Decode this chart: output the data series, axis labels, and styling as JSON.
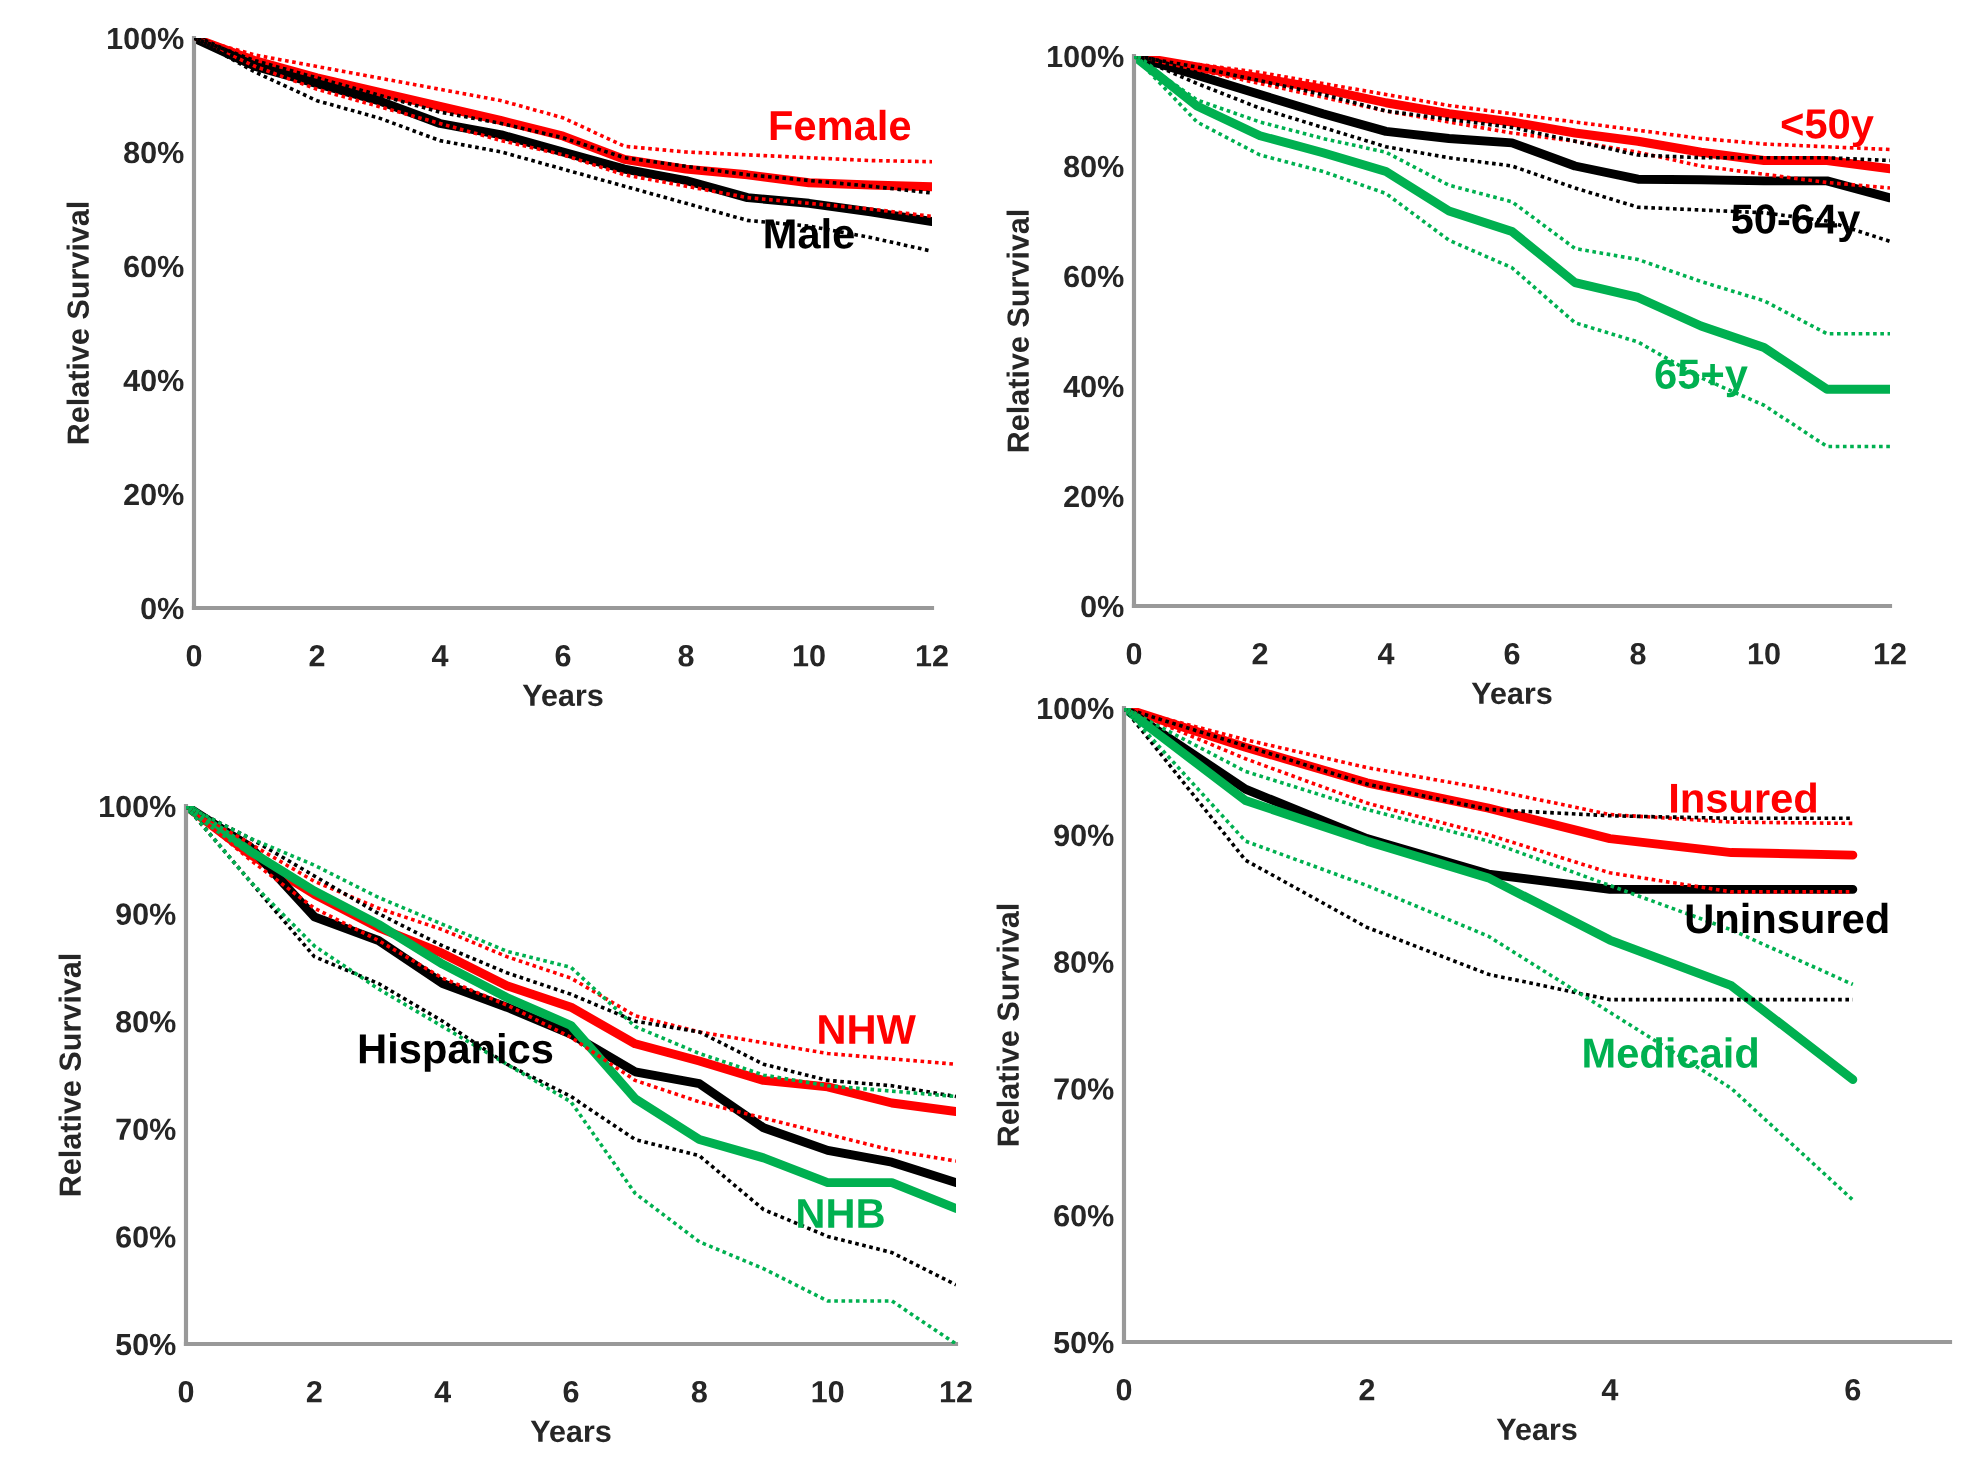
{
  "chart_data": [
    {
      "type": "line",
      "xlabel": "Years",
      "ylabel": "Relative Survival",
      "x": [
        0,
        1,
        2,
        3,
        4,
        5,
        6,
        7,
        8,
        9,
        10,
        11,
        12
      ],
      "xlim": [
        0,
        12
      ],
      "xticks": [
        0,
        2,
        4,
        6,
        8,
        10,
        12
      ],
      "ylim": [
        0,
        100
      ],
      "yticks": [
        {
          "value": 0,
          "label": "0%"
        },
        {
          "value": 20,
          "label": "20%"
        },
        {
          "value": 40,
          "label": "40%"
        },
        {
          "value": 60,
          "label": "60%"
        },
        {
          "value": 80,
          "label": "80%"
        },
        {
          "value": 100,
          "label": "100%"
        }
      ],
      "grid": false,
      "legend": false,
      "line_style": "solid",
      "series": [
        {
          "name": "Female",
          "color": "#ff0000",
          "values": [
            100,
            96,
            93,
            90.5,
            88,
            85.5,
            82.8,
            78.7,
            77,
            76,
            74.6,
            74.2,
            73.9
          ]
        },
        {
          "color": "#ff0000",
          "line_style": "dotted",
          "values": [
            100,
            97,
            95,
            93,
            91,
            89,
            86,
            81,
            80,
            79.5,
            79,
            78.5,
            78.3
          ]
        },
        {
          "color": "#ff0000",
          "line_style": "dotted",
          "values": [
            100,
            95,
            91,
            88,
            85,
            82,
            79.5,
            76,
            74,
            72,
            71,
            70,
            68.7
          ]
        },
        {
          "name": "Male",
          "color": "#000000",
          "values": [
            100,
            95,
            92,
            89,
            85,
            83,
            80,
            77,
            75,
            72,
            71,
            69.5,
            67.8
          ]
        },
        {
          "color": "#000000",
          "line_style": "dotted",
          "values": [
            100,
            96,
            93,
            90,
            87,
            85,
            82.5,
            79,
            77.5,
            76,
            75,
            74,
            72.8
          ]
        },
        {
          "color": "#000000",
          "line_style": "dotted",
          "values": [
            100,
            94,
            89,
            86,
            82,
            80,
            77,
            74,
            71,
            68,
            67,
            65,
            62.6
          ]
        }
      ]
    },
    {
      "type": "line",
      "xlabel": "Years",
      "ylabel": "Relative Survival",
      "x": [
        0,
        1,
        2,
        3,
        4,
        5,
        6,
        7,
        8,
        9,
        10,
        11,
        12
      ],
      "xlim": [
        0,
        12
      ],
      "xticks": [
        0,
        2,
        4,
        6,
        8,
        10,
        12
      ],
      "ylim": [
        0,
        100
      ],
      "yticks": [
        {
          "value": 0,
          "label": "0%"
        },
        {
          "value": 20,
          "label": "20%"
        },
        {
          "value": 40,
          "label": "40%"
        },
        {
          "value": 60,
          "label": "60%"
        },
        {
          "value": 80,
          "label": "80%"
        },
        {
          "value": 100,
          "label": "100%"
        }
      ],
      "grid": false,
      "legend": false,
      "line_style": "solid",
      "series": [
        {
          "name": "<50y",
          "color": "#ff0000",
          "values": [
            100,
            98,
            96,
            94,
            91.5,
            89.5,
            88,
            86,
            84.5,
            82.5,
            81,
            81,
            79.5
          ]
        },
        {
          "color": "#ff0000",
          "line_style": "dotted",
          "values": [
            100,
            98.5,
            97,
            95,
            93,
            91,
            89.5,
            88,
            86.5,
            85,
            84,
            83.5,
            83
          ]
        },
        {
          "color": "#ff0000",
          "line_style": "dotted",
          "values": [
            100,
            97.5,
            95,
            92.5,
            90,
            88,
            86,
            84.5,
            82.5,
            80,
            78.5,
            77,
            76
          ]
        },
        {
          "name": "50-64y",
          "color": "#000000",
          "values": [
            100,
            96.5,
            93,
            89.5,
            86.3,
            85,
            84.2,
            80,
            77.6,
            77.5,
            77.3,
            77.3,
            74.2
          ]
        },
        {
          "color": "#000000",
          "line_style": "dotted",
          "values": [
            100,
            98,
            95.5,
            93,
            90,
            88.5,
            87,
            84.5,
            82,
            81.5,
            81.5,
            81.5,
            81
          ]
        },
        {
          "color": "#000000",
          "line_style": "dotted",
          "values": [
            100,
            95,
            90.5,
            87,
            83.5,
            81.5,
            80,
            76,
            72.5,
            72,
            71.5,
            70,
            66.3
          ]
        },
        {
          "name": "65+y",
          "color": "#00b050",
          "values": [
            100,
            90.9,
            85.5,
            82.4,
            79,
            71.8,
            68.1,
            58.8,
            56.1,
            50.9,
            47,
            39.4,
            39.4
          ]
        },
        {
          "color": "#00b050",
          "line_style": "dotted",
          "values": [
            100,
            92,
            88,
            85,
            82.5,
            76.5,
            73.5,
            65,
            63,
            59,
            55.5,
            49.5,
            49.5
          ]
        },
        {
          "color": "#00b050",
          "line_style": "dotted",
          "values": [
            100,
            88,
            82,
            79,
            75,
            66.5,
            61.5,
            51.5,
            48,
            41.5,
            36.5,
            29,
            29
          ]
        }
      ]
    },
    {
      "type": "line",
      "xlabel": "Years",
      "ylabel": "Relative Survival",
      "x": [
        0,
        1,
        2,
        3,
        4,
        5,
        6,
        7,
        8,
        9,
        10,
        11,
        12
      ],
      "xlim": [
        0,
        12
      ],
      "xticks": [
        0,
        2,
        4,
        6,
        8,
        10,
        12
      ],
      "ylim": [
        50,
        100
      ],
      "yticks": [
        {
          "value": 50,
          "label": "50%"
        },
        {
          "value": 60,
          "label": "60%"
        },
        {
          "value": 70,
          "label": "70%"
        },
        {
          "value": 80,
          "label": "80%"
        },
        {
          "value": 90,
          "label": "90%"
        },
        {
          "value": 100,
          "label": "100%"
        }
      ],
      "grid": false,
      "legend": false,
      "line_style": "solid",
      "series": [
        {
          "name": "NHW",
          "color": "#ff0000",
          "values": [
            100,
            95.5,
            91.8,
            88.7,
            86.3,
            83.3,
            81.3,
            77.9,
            76.3,
            74.5,
            73.9,
            72.4,
            71.6
          ]
        },
        {
          "color": "#ff0000",
          "line_style": "dotted",
          "values": [
            100,
            96.5,
            93,
            90.5,
            88.5,
            86,
            84,
            80.5,
            79,
            78,
            77,
            76.5,
            76
          ]
        },
        {
          "color": "#ff0000",
          "line_style": "dotted",
          "values": [
            100,
            95,
            90.5,
            87.5,
            84,
            81.5,
            78.5,
            74.5,
            72.5,
            71,
            69.5,
            68,
            67
          ]
        },
        {
          "name": "Hispanics",
          "color": "#000000",
          "values": [
            100,
            96.2,
            89.7,
            87.5,
            83.5,
            81.3,
            78.8,
            75.3,
            74.2,
            70.1,
            68,
            66.9,
            65
          ]
        },
        {
          "color": "#000000",
          "line_style": "dotted",
          "values": [
            100,
            97,
            93.5,
            90,
            87,
            84.5,
            82.5,
            80,
            79,
            76,
            74.5,
            74,
            73
          ]
        },
        {
          "color": "#000000",
          "line_style": "dotted",
          "values": [
            100,
            93,
            86,
            83.5,
            80,
            76,
            73,
            69,
            67.5,
            62.5,
            60,
            58.5,
            55.5
          ]
        },
        {
          "name": "NHB",
          "color": "#00b050",
          "values": [
            100,
            95.8,
            92.1,
            89,
            85.3,
            82.2,
            79.6,
            72.8,
            69,
            67.3,
            65,
            65,
            62.6
          ]
        },
        {
          "color": "#00b050",
          "line_style": "dotted",
          "values": [
            100,
            97,
            94.5,
            91.5,
            89,
            86.5,
            85,
            79.5,
            77,
            75,
            74,
            73.5,
            73
          ]
        },
        {
          "color": "#00b050",
          "line_style": "dotted",
          "values": [
            100,
            93,
            87,
            83,
            79.5,
            76,
            72.5,
            64,
            59.5,
            57,
            54,
            54,
            50
          ]
        }
      ]
    },
    {
      "type": "line",
      "xlabel": "Years",
      "ylabel": "Relative Survival",
      "x": [
        0,
        1,
        2,
        3,
        4,
        5,
        6
      ],
      "xlim": [
        0,
        6.8
      ],
      "xticks": [
        0,
        2,
        4,
        6
      ],
      "ylim": [
        50,
        100
      ],
      "yticks": [
        {
          "value": 50,
          "label": "50%"
        },
        {
          "value": 60,
          "label": "60%"
        },
        {
          "value": 70,
          "label": "70%"
        },
        {
          "value": 80,
          "label": "80%"
        },
        {
          "value": 90,
          "label": "90%"
        },
        {
          "value": 100,
          "label": "100%"
        }
      ],
      "grid": false,
      "legend": false,
      "line_style": "solid",
      "series": [
        {
          "name": "Insured",
          "color": "#ff0000",
          "values": [
            100,
            96.9,
            94.1,
            92.1,
            89.7,
            88.6,
            88.4
          ]
        },
        {
          "color": "#ff0000",
          "line_style": "dotted",
          "values": [
            100,
            97.5,
            95.3,
            93.6,
            91.6,
            91,
            90.9
          ]
        },
        {
          "color": "#ff0000",
          "line_style": "dotted",
          "values": [
            100,
            96,
            92.5,
            90,
            87,
            85.5,
            85.5
          ]
        },
        {
          "name": "Uninsured",
          "color": "#000000",
          "values": [
            100,
            93.6,
            89.7,
            86.9,
            85.7,
            85.7,
            85.7
          ]
        },
        {
          "color": "#000000",
          "line_style": "dotted",
          "values": [
            100,
            97,
            94,
            92,
            91.5,
            91.3,
            91.3
          ]
        },
        {
          "color": "#000000",
          "line_style": "dotted",
          "values": [
            100,
            88,
            82.7,
            79,
            77,
            77,
            77
          ]
        },
        {
          "name": "Medicaid",
          "color": "#00b050",
          "values": [
            100,
            92.7,
            89.5,
            86.6,
            81.7,
            78.1,
            70.7
          ]
        },
        {
          "color": "#00b050",
          "line_style": "dotted",
          "values": [
            100,
            95,
            92,
            89.5,
            86,
            82.5,
            78.2
          ]
        },
        {
          "color": "#00b050",
          "line_style": "dotted",
          "values": [
            100,
            89.5,
            86,
            82,
            76,
            70,
            61.2
          ]
        }
      ]
    }
  ]
}
